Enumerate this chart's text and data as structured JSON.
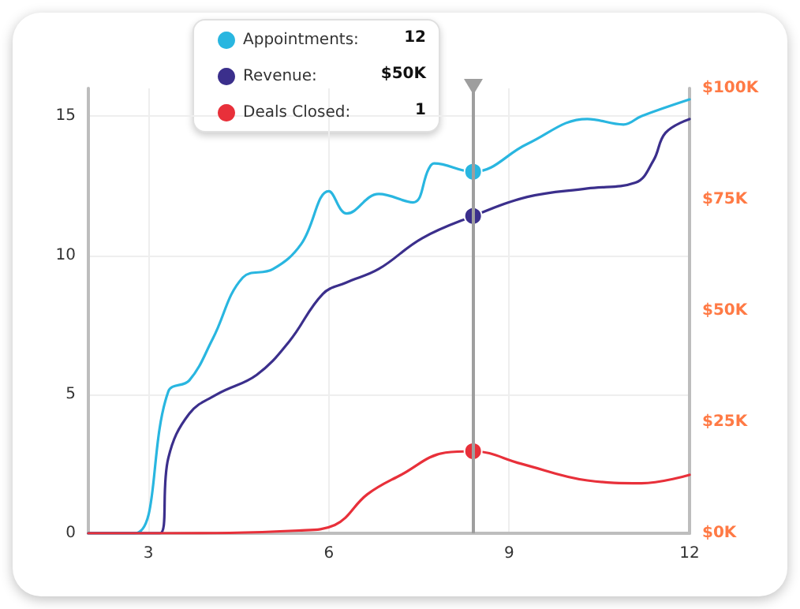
{
  "chart_data": {
    "type": "line",
    "xlim": [
      2,
      12
    ],
    "xticks": [
      3,
      6,
      9,
      12
    ],
    "ylim": [
      0,
      16
    ],
    "yticks": [
      0,
      5,
      10,
      15
    ],
    "y2lim": [
      0,
      100
    ],
    "y2ticks": [
      {
        "value": 0,
        "label": "$0K"
      },
      {
        "value": 25,
        "label": "$25K"
      },
      {
        "value": 50,
        "label": "$50K"
      },
      {
        "value": 75,
        "label": "$75K"
      },
      {
        "value": 100,
        "label": "$100K"
      }
    ],
    "series": [
      {
        "name": "Appointments:",
        "color": "#29b6e0",
        "x": [
          2,
          2.77,
          3.33,
          3.68,
          4.07,
          4.57,
          5.07,
          5.54,
          6.0,
          6.3,
          6.83,
          7.4,
          7.66,
          7.75,
          8.4,
          9.3,
          10.3,
          10.9,
          11.2,
          12
        ],
        "values": [
          0,
          0,
          5.1,
          5.5,
          7.0,
          9.2,
          9.5,
          10.4,
          12.3,
          11.5,
          12.2,
          11.9,
          13.1,
          13.3,
          13.0,
          14.0,
          14.9,
          14.7,
          15.0,
          15.6
        ]
      },
      {
        "name": "Revenue:",
        "color": "#3b2f8c",
        "axis": "y2",
        "x": [
          2,
          3.19,
          3.33,
          3.68,
          4.15,
          4.8,
          5.34,
          5.9,
          6.28,
          6.83,
          7.55,
          8.4,
          9.3,
          10.3,
          11.1,
          11.4,
          11.6,
          12
        ],
        "values": [
          0,
          0,
          16.9,
          26.9,
          31.3,
          35.6,
          43.1,
          53.8,
          56.3,
          59.4,
          66.3,
          71.3,
          75.6,
          77.5,
          78.8,
          83.8,
          90,
          93.1
        ]
      },
      {
        "name": "Deals Closed:",
        "color": "#e8303a",
        "x": [
          2,
          3.2,
          5.5,
          6.1,
          6.64,
          7.2,
          7.94,
          8.4,
          9.2,
          10.3,
          11.2,
          12
        ],
        "values": [
          0,
          0,
          0.1,
          0.3,
          1.4,
          2.1,
          2.9,
          2.95,
          2.5,
          1.9,
          1.8,
          2.1
        ]
      }
    ],
    "ref_lines": [
      {
        "axis": "x",
        "value": 8.4,
        "color": "#9e9e9e"
      }
    ],
    "annotations": [
      "12",
      "$50K",
      "1"
    ],
    "grid": true,
    "legend": "top left",
    "marker": "none",
    "line_style": "solid"
  }
}
